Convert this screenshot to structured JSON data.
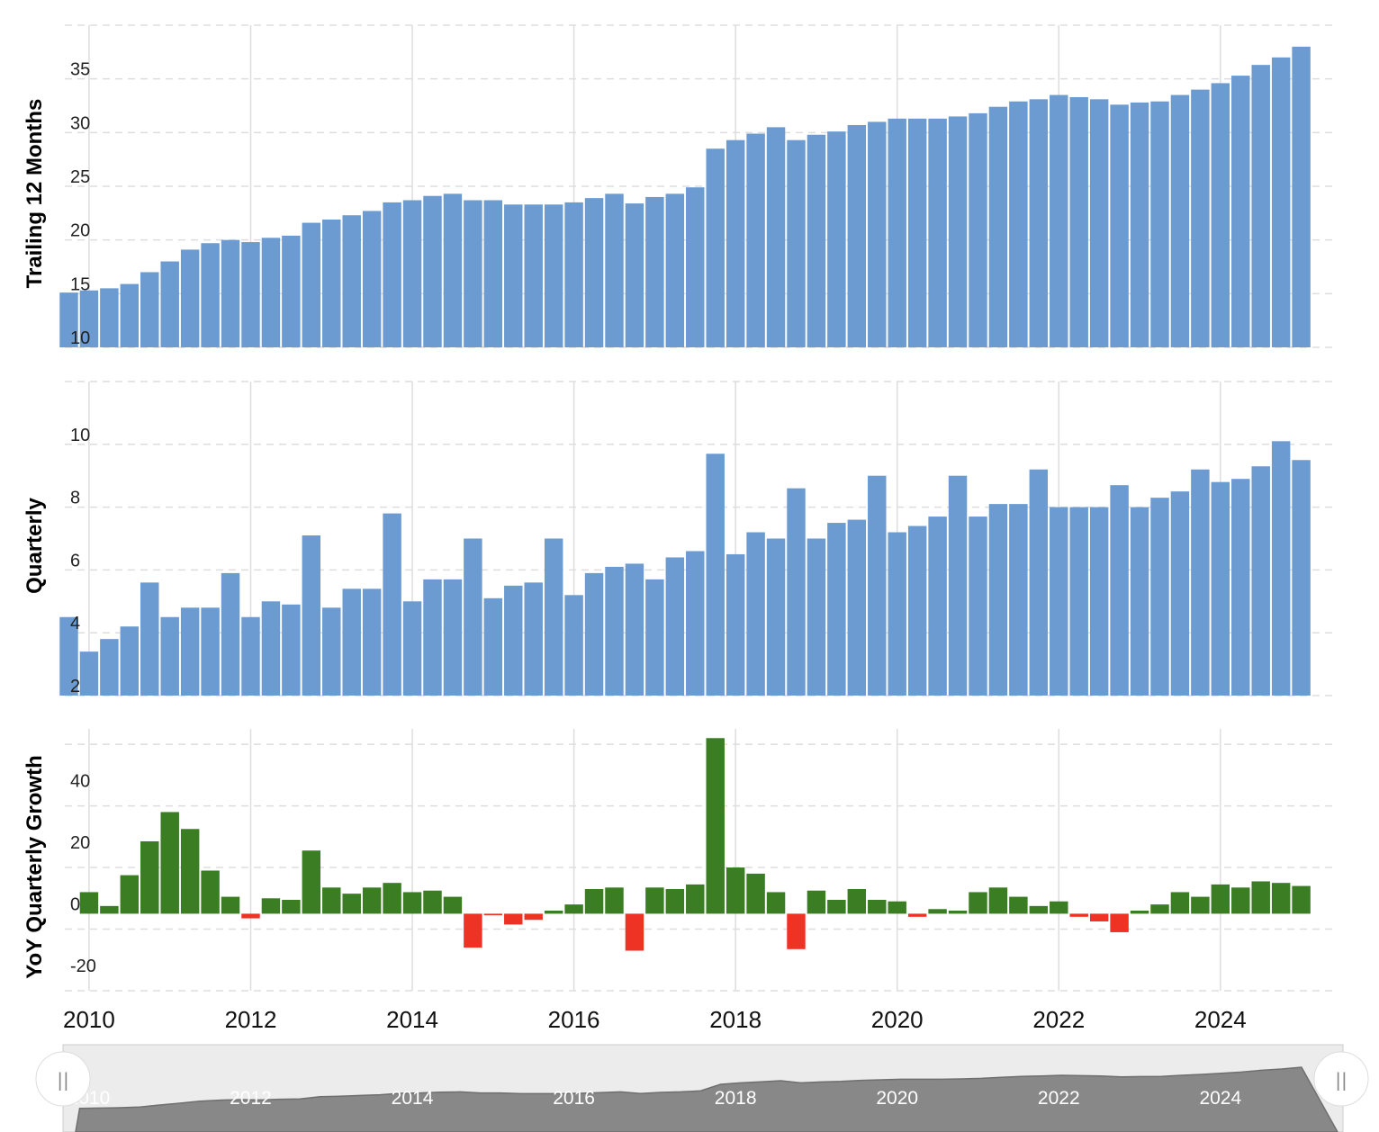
{
  "colors": {
    "bar": "#6b9bd1",
    "positive": "#3a7d22",
    "negative": "#ee3224",
    "grid": "#dddddd",
    "navigator_area": "#888888",
    "navigator_bg": "#ececec"
  },
  "chart_data": [
    {
      "type": "bar",
      "ylabel": "Trailing 12 Months",
      "ylim": [
        10,
        40
      ],
      "yticks": [
        "10",
        "15",
        "20",
        "25",
        "30",
        "35"
      ],
      "x_start": 2009.75,
      "x_step": 0.25,
      "values": [
        15.1,
        15.3,
        15.5,
        15.9,
        17.0,
        18.0,
        19.1,
        19.7,
        20.0,
        19.8,
        20.2,
        20.4,
        21.6,
        21.9,
        22.3,
        22.7,
        23.5,
        23.7,
        24.1,
        24.3,
        23.7,
        23.7,
        23.3,
        23.3,
        23.3,
        23.5,
        23.9,
        24.3,
        23.4,
        24.0,
        24.3,
        24.9,
        28.5,
        29.3,
        29.9,
        30.5,
        29.3,
        29.8,
        30.1,
        30.7,
        31.0,
        31.3,
        31.3,
        31.3,
        31.5,
        31.8,
        32.4,
        32.9,
        33.1,
        33.5,
        33.3,
        33.1,
        32.6,
        32.8,
        32.9,
        33.5,
        34.0,
        34.6,
        35.3,
        36.3,
        37.0,
        38.0
      ]
    },
    {
      "type": "bar",
      "ylabel": "Quarterly",
      "ylim": [
        2,
        12
      ],
      "yticks": [
        "2",
        "4",
        "6",
        "8",
        "10"
      ],
      "x_start": 2009.75,
      "x_step": 0.25,
      "values": [
        4.5,
        3.4,
        3.8,
        4.2,
        5.6,
        4.5,
        4.8,
        4.8,
        5.9,
        4.5,
        5.0,
        4.9,
        7.1,
        4.8,
        5.4,
        5.4,
        7.8,
        5.0,
        5.7,
        5.7,
        7.0,
        5.1,
        5.5,
        5.6,
        7.0,
        5.2,
        5.9,
        6.1,
        6.2,
        5.7,
        6.4,
        6.6,
        9.7,
        6.5,
        7.2,
        7.0,
        8.6,
        7.0,
        7.5,
        7.6,
        9.0,
        7.2,
        7.4,
        7.7,
        9.0,
        7.7,
        8.1,
        8.1,
        9.2,
        8.0,
        8.0,
        8.0,
        8.7,
        8.0,
        8.3,
        8.5,
        9.2,
        8.8,
        8.9,
        9.3,
        10.1,
        9.5
      ]
    },
    {
      "type": "bar",
      "ylabel": "YoY Quarterly Growth",
      "ylim": [
        -25,
        60
      ],
      "yticks": [
        "-20",
        "0",
        "20",
        "40"
      ],
      "x_start": 2009.75,
      "x_step": 0.25,
      "values": [
        null,
        7,
        2.5,
        12.5,
        23.5,
        33,
        27.5,
        14,
        5.5,
        -1.5,
        5,
        4.5,
        20.5,
        8.5,
        6.5,
        8.5,
        10,
        7,
        7.5,
        5.5,
        -11,
        -0.5,
        -3.5,
        -2,
        1,
        3,
        8,
        8.5,
        -12,
        8.5,
        8,
        9.5,
        57,
        15,
        13,
        7,
        -11.5,
        7.5,
        4.5,
        8,
        4.5,
        4,
        -1,
        1.5,
        1,
        7,
        8.5,
        5.5,
        2.5,
        4,
        -1,
        -2.5,
        -6,
        1,
        3,
        7,
        5.5,
        9.5,
        8.5,
        10.5,
        10,
        9
      ]
    }
  ],
  "xaxis": {
    "range": [
      2009.7,
      2025.45
    ],
    "ticks": [
      "2010",
      "2012",
      "2014",
      "2016",
      "2018",
      "2020",
      "2022",
      "2024"
    ]
  },
  "navigator": {
    "labels": [
      "2010",
      "2012",
      "2014",
      "2016",
      "2018",
      "2020",
      "2022",
      "2024"
    ],
    "handle_glyph": "||"
  }
}
